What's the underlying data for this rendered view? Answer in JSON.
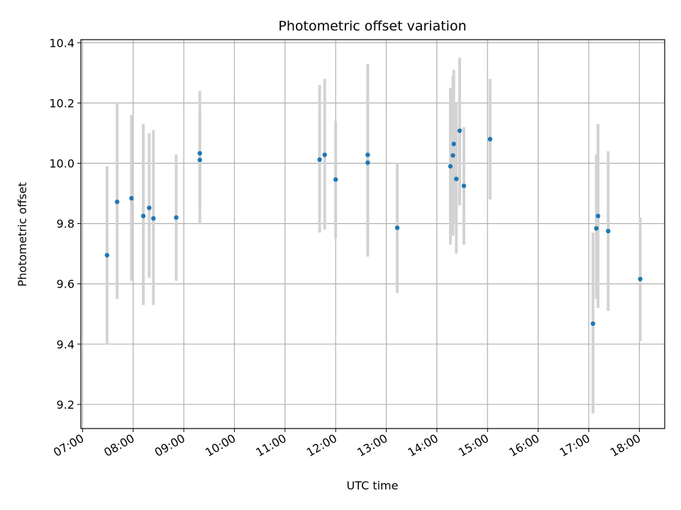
{
  "chart_data": {
    "type": "scatter",
    "title": "Photometric offset variation",
    "xlabel": "UTC time",
    "ylabel": "Photometric offset",
    "x_ticks": [
      "07:00",
      "08:00",
      "09:00",
      "10:00",
      "11:00",
      "12:00",
      "13:00",
      "14:00",
      "15:00",
      "16:00",
      "17:00",
      "18:00"
    ],
    "y_ticks": [
      "9.2",
      "9.4",
      "9.6",
      "9.8",
      "10.0",
      "10.2",
      "10.4"
    ],
    "xlim": [
      "06:58",
      "18:30"
    ],
    "ylim": [
      9.12,
      10.41
    ],
    "grid": true,
    "colors": {
      "point": "#1f77b4",
      "errorbar": "#d3d3d3",
      "grid": "#b0b0b0"
    },
    "series": [
      {
        "points": [
          {
            "x": "07:29",
            "y": 9.695,
            "yerr_low": 9.4,
            "yerr_high": 9.99
          },
          {
            "x": "07:41",
            "y": 9.872,
            "yerr_low": 9.55,
            "yerr_high": 10.2
          },
          {
            "x": "07:58",
            "y": 9.884,
            "yerr_low": 9.61,
            "yerr_high": 10.16
          },
          {
            "x": "08:12",
            "y": 9.825,
            "yerr_low": 9.53,
            "yerr_high": 10.13
          },
          {
            "x": "08:19",
            "y": 9.852,
            "yerr_low": 9.62,
            "yerr_high": 10.1
          },
          {
            "x": "08:24",
            "y": 9.817,
            "yerr_low": 9.53,
            "yerr_high": 10.11
          },
          {
            "x": "08:51",
            "y": 9.82,
            "yerr_low": 9.61,
            "yerr_high": 10.03
          },
          {
            "x": "09:19",
            "y": 10.033,
            "yerr_low": 9.8,
            "yerr_high": 10.24
          },
          {
            "x": "09:19",
            "y": 10.011,
            "yerr_low": 9.85,
            "yerr_high": 10.17
          },
          {
            "x": "11:41",
            "y": 10.012,
            "yerr_low": 9.77,
            "yerr_high": 10.26
          },
          {
            "x": "11:47",
            "y": 10.028,
            "yerr_low": 9.78,
            "yerr_high": 10.28
          },
          {
            "x": "12:00",
            "y": 9.946,
            "yerr_low": 9.75,
            "yerr_high": 10.14
          },
          {
            "x": "12:38",
            "y": 10.028,
            "yerr_low": 9.73,
            "yerr_high": 10.33
          },
          {
            "x": "12:38",
            "y": 10.002,
            "yerr_low": 9.69,
            "yerr_high": 10.31
          },
          {
            "x": "13:13",
            "y": 9.786,
            "yerr_low": 9.57,
            "yerr_high": 10.0
          },
          {
            "x": "14:16",
            "y": 9.99,
            "yerr_low": 9.73,
            "yerr_high": 10.25
          },
          {
            "x": "14:19",
            "y": 10.026,
            "yerr_low": 9.76,
            "yerr_high": 10.29
          },
          {
            "x": "14:20",
            "y": 10.064,
            "yerr_low": 9.8,
            "yerr_high": 10.31
          },
          {
            "x": "14:23",
            "y": 9.948,
            "yerr_low": 9.7,
            "yerr_high": 10.2
          },
          {
            "x": "14:27",
            "y": 10.108,
            "yerr_low": 9.86,
            "yerr_high": 10.35
          },
          {
            "x": "14:32",
            "y": 9.925,
            "yerr_low": 9.73,
            "yerr_high": 10.12
          },
          {
            "x": "15:03",
            "y": 10.08,
            "yerr_low": 9.88,
            "yerr_high": 10.28
          },
          {
            "x": "17:05",
            "y": 9.468,
            "yerr_low": 9.17,
            "yerr_high": 9.77
          },
          {
            "x": "17:09",
            "y": 9.784,
            "yerr_low": 9.55,
            "yerr_high": 10.03
          },
          {
            "x": "17:11",
            "y": 9.825,
            "yerr_low": 9.52,
            "yerr_high": 10.13
          },
          {
            "x": "17:23",
            "y": 9.775,
            "yerr_low": 9.51,
            "yerr_high": 10.04
          },
          {
            "x": "18:01",
            "y": 9.616,
            "yerr_low": 9.41,
            "yerr_high": 9.82
          }
        ]
      }
    ]
  }
}
